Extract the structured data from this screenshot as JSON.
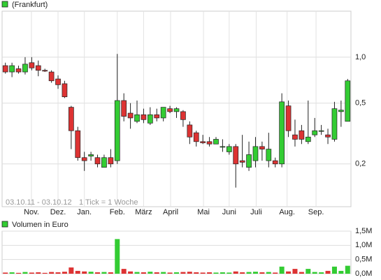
{
  "chart_data": [
    {
      "type": "candlestick",
      "legend": "(Frankfurt)",
      "color_up": "#33cc33",
      "color_down": "#dd3333",
      "log_scale": true,
      "grid": true,
      "annotations": [
        "03.10.11 - 03.10.12",
        "1 Tick = 1 Woche"
      ],
      "open": [
        0.88,
        0.8,
        0.84,
        0.8,
        0.92,
        0.88,
        0.82,
        0.8,
        0.72,
        0.67,
        0.47,
        0.33,
        0.22,
        0.225,
        0.22,
        0.19,
        0.22,
        0.21,
        0.52,
        0.43,
        0.38,
        0.42,
        0.37,
        0.42,
        0.4,
        0.46,
        0.44,
        0.44,
        0.36,
        0.32,
        0.28,
        0.28,
        0.27,
        0.26,
        0.24,
        0.26,
        0.21,
        0.19,
        0.21,
        0.26,
        0.21,
        0.21,
        0.2,
        0.48,
        0.31,
        0.33,
        0.28,
        0.31,
        0.33,
        0.31,
        0.29,
        0.44,
        0.38
      ],
      "high": [
        0.92,
        0.92,
        0.88,
        1.0,
        1.0,
        0.95,
        0.84,
        0.82,
        0.76,
        0.7,
        0.48,
        0.35,
        0.24,
        0.24,
        0.23,
        0.23,
        0.25,
        1.05,
        0.58,
        0.5,
        0.52,
        0.46,
        0.47,
        0.46,
        0.47,
        0.48,
        0.47,
        0.45,
        0.38,
        0.33,
        0.31,
        0.3,
        0.3,
        0.29,
        0.27,
        0.27,
        0.31,
        0.28,
        0.3,
        0.28,
        0.32,
        0.22,
        0.58,
        0.52,
        0.39,
        0.36,
        0.52,
        0.4,
        0.36,
        0.34,
        0.51,
        0.52,
        0.72
      ],
      "low": [
        0.78,
        0.74,
        0.78,
        0.77,
        0.82,
        0.75,
        0.8,
        0.68,
        0.62,
        0.54,
        0.25,
        0.21,
        0.18,
        0.21,
        0.19,
        0.19,
        0.19,
        0.2,
        0.38,
        0.34,
        0.37,
        0.37,
        0.36,
        0.38,
        0.38,
        0.43,
        0.4,
        0.35,
        0.27,
        0.26,
        0.27,
        0.26,
        0.27,
        0.24,
        0.23,
        0.14,
        0.19,
        0.18,
        0.19,
        0.21,
        0.19,
        0.19,
        0.19,
        0.3,
        0.26,
        0.27,
        0.27,
        0.3,
        0.31,
        0.27,
        0.28,
        0.35,
        0.38
      ],
      "close": [
        0.8,
        0.88,
        0.8,
        0.9,
        0.85,
        0.82,
        0.81,
        0.7,
        0.66,
        0.55,
        0.33,
        0.22,
        0.21,
        0.23,
        0.2,
        0.22,
        0.2,
        0.52,
        0.41,
        0.4,
        0.42,
        0.39,
        0.42,
        0.4,
        0.47,
        0.44,
        0.46,
        0.39,
        0.3,
        0.28,
        0.275,
        0.27,
        0.29,
        0.26,
        0.26,
        0.2,
        0.205,
        0.23,
        0.26,
        0.25,
        0.25,
        0.2,
        0.51,
        0.33,
        0.29,
        0.29,
        0.3,
        0.33,
        0.33,
        0.3,
        0.46,
        0.45,
        0.7
      ],
      "xticks": [
        {
          "value": 3.96,
          "label": "Nov."
        },
        {
          "value": 8.0,
          "label": "Dez."
        },
        {
          "value": 12.0,
          "label": "Jan."
        },
        {
          "value": 17.0,
          "label": "Feb."
        },
        {
          "value": 21.0,
          "label": "März"
        },
        {
          "value": 25.1,
          "label": "April"
        },
        {
          "value": 30.1,
          "label": "Mai"
        },
        {
          "value": 34.0,
          "label": "Juni"
        },
        {
          "value": 38.1,
          "label": "Juli"
        },
        {
          "value": 42.8,
          "label": "Aug."
        },
        {
          "value": 47.2,
          "label": "Sep."
        }
      ],
      "xlim": [
        -0.5,
        52.5
      ],
      "ylim": [
        0.105,
        2.0
      ],
      "yticks": [
        {
          "value": 1.0,
          "label": "1,0"
        },
        {
          "value": 0.5,
          "label": "0,5"
        },
        {
          "value": 0.2,
          "label": "0,2"
        }
      ]
    },
    {
      "type": "bar",
      "legend": "Volumen in Euro",
      "grid": true,
      "values": [
        0.04,
        0.05,
        0.03,
        0.06,
        0.04,
        0.05,
        0.03,
        0.06,
        0.05,
        0.07,
        0.22,
        0.1,
        0.08,
        0.07,
        0.05,
        0.06,
        0.05,
        1.22,
        0.17,
        0.08,
        0.06,
        0.05,
        0.07,
        0.05,
        0.06,
        0.04,
        0.05,
        0.06,
        0.07,
        0.05,
        0.04,
        0.05,
        0.04,
        0.05,
        0.04,
        0.08,
        0.05,
        0.06,
        0.07,
        0.05,
        0.06,
        0.04,
        0.25,
        0.08,
        0.17,
        0.06,
        0.17,
        0.06,
        0.05,
        0.1,
        0.25,
        0.1,
        0.28
      ],
      "xlim": [
        -0.5,
        52.5
      ],
      "ylim": [
        0,
        1.5
      ],
      "yticks": [
        {
          "value": 1.5,
          "label": "1,5M"
        },
        {
          "value": 1.0,
          "label": "1,0M"
        },
        {
          "value": 0.5,
          "label": "0,5M"
        },
        {
          "value": 0,
          "label": "0,0M"
        }
      ]
    }
  ]
}
